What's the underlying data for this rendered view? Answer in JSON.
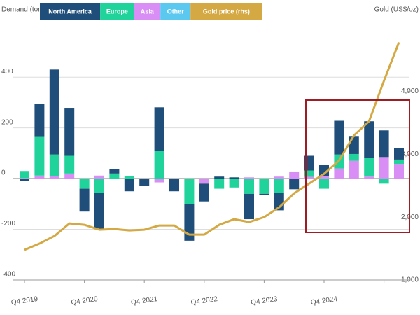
{
  "chart_data": {
    "type": "bar",
    "stacked": true,
    "ylabel": "Demand (tonnes)",
    "y2label": "Gold (US$/oz)",
    "categories": [
      "Q4 2019",
      null,
      null,
      null,
      "Q4 2020",
      null,
      null,
      null,
      "Q4 2021",
      null,
      null,
      null,
      "Q4 2022",
      null,
      null,
      null,
      "Q4 2023",
      null,
      null,
      null,
      "Q4 2024",
      null,
      null,
      null,
      null,
      null
    ],
    "ylim": [
      -400,
      580
    ],
    "yticks": [
      -400,
      -200,
      0,
      200,
      400
    ],
    "y2lim": [
      1000,
      4950
    ],
    "y2ticks": [
      {
        "value": 1000,
        "label": "1,000"
      },
      {
        "value": 2000,
        "label": "2,000"
      },
      {
        "value": 3000,
        "label": "3,000"
      },
      {
        "value": 4000,
        "label": "4,000"
      }
    ],
    "grid": true,
    "legend": "top",
    "series": [
      {
        "name": "North America",
        "color": "#1f4e7a",
        "values": [
          -10,
          128,
          335,
          189,
          -90,
          -145,
          18,
          -50,
          -28,
          171,
          -50,
          -145,
          -70,
          8,
          5,
          -100,
          -5,
          -70,
          -42,
          58,
          45,
          133,
          71,
          143,
          105,
          45
        ]
      },
      {
        "name": "Europe",
        "color": "#1fd39a",
        "values": [
          28,
          155,
          85,
          70,
          -40,
          -55,
          20,
          10,
          0,
          110,
          0,
          -100,
          0,
          -40,
          -35,
          -60,
          -60,
          -55,
          0,
          25,
          -40,
          55,
          27,
          75,
          -20,
          17
        ]
      },
      {
        "name": "Asia",
        "color": "#d98ef5",
        "values": [
          2,
          12,
          10,
          20,
          0,
          12,
          0,
          0,
          0,
          -15,
          0,
          0,
          -20,
          0,
          0,
          5,
          0,
          8,
          28,
          7,
          10,
          40,
          70,
          8,
          85,
          58
        ]
      },
      {
        "name": "Other",
        "color": "#5bc8f0",
        "values": [
          0,
          0,
          0,
          0,
          0,
          0,
          0,
          0,
          0,
          0,
          0,
          0,
          0,
          0,
          0,
          0,
          0,
          0,
          0,
          0,
          0,
          0,
          0,
          0,
          0,
          0
        ]
      },
      {
        "name": "Gold price (rhs)",
        "color": "#d4a843",
        "type": "line",
        "axis": "y2",
        "values": [
          1478,
          1578,
          1700,
          1900,
          1878,
          1800,
          1811,
          1789,
          1800,
          1867,
          1867,
          1722,
          1722,
          1878,
          1967,
          1922,
          2000,
          2156,
          2378,
          2533,
          2689,
          2900,
          3300,
          3522,
          4167,
          4778
        ]
      }
    ]
  }
}
